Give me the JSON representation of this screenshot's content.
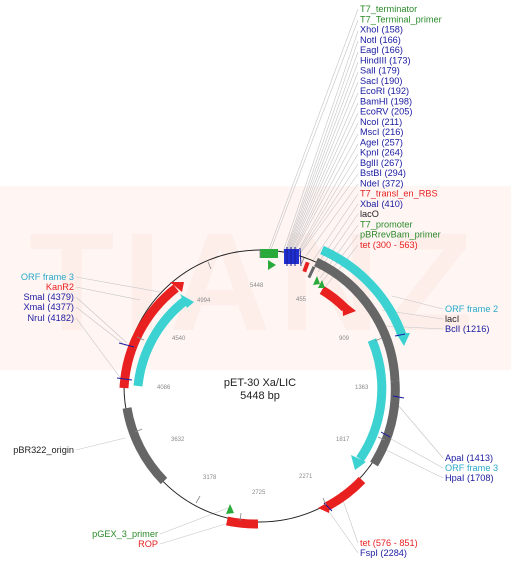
{
  "plasmid": {
    "name": "pET-30 Xa/LIC",
    "size_label": "5448 bp",
    "length": 5448
  },
  "watermark": "TIANZ",
  "colors": {
    "backbone": "#222222",
    "enzyme": "#1a1aa0",
    "feature": "#2a8a2a",
    "red": "#e82020",
    "cyan": "#3cd2d2",
    "grey": "#6a6a6a",
    "green": "#2aaa3a",
    "blue": "#2030d0",
    "leader": "#bdbdbd",
    "watermark": "#fff3f1"
  },
  "ticks": [
    "5448",
    "455",
    "909",
    "1363",
    "1817",
    "2271",
    "2725",
    "3178",
    "3632",
    "4086",
    "4540",
    "4994"
  ],
  "labels_top": [
    {
      "text": "T7_terminator",
      "color": "feature"
    },
    {
      "text": "T7_Terminal_primer",
      "color": "feature"
    },
    {
      "text": "XhoI (158)",
      "color": "enzyme"
    },
    {
      "text": "NotI (166)",
      "color": "enzyme"
    },
    {
      "text": "EagI (166)",
      "color": "enzyme"
    },
    {
      "text": "HindIII (173)",
      "color": "enzyme"
    },
    {
      "text": "SalI (179)",
      "color": "enzyme"
    },
    {
      "text": "SacI (190)",
      "color": "enzyme"
    },
    {
      "text": "EcoRI (192)",
      "color": "enzyme"
    },
    {
      "text": "BamHI (198)",
      "color": "enzyme"
    },
    {
      "text": "EcoRV (205)",
      "color": "enzyme"
    },
    {
      "text": "NcoI (211)",
      "color": "enzyme"
    },
    {
      "text": "MscI (216)",
      "color": "enzyme"
    },
    {
      "text": "AgeI (257)",
      "color": "enzyme"
    },
    {
      "text": "KpnI (264)",
      "color": "enzyme"
    },
    {
      "text": "BglII (267)",
      "color": "enzyme"
    },
    {
      "text": "BstBI (294)",
      "color": "enzyme"
    },
    {
      "text": "NdeI (372)",
      "color": "enzyme"
    },
    {
      "text": "T7_transl_en_RBS",
      "color": "red"
    },
    {
      "text": "XbaI (410)",
      "color": "enzyme"
    },
    {
      "text": "lacO",
      "color": "backbone"
    },
    {
      "text": "T7_promoter",
      "color": "feature"
    },
    {
      "text": "pBRrevBam_primer",
      "color": "feature"
    },
    {
      "text": "tet (300 - 563)",
      "color": "red"
    }
  ],
  "labels_right": [
    {
      "text": "ORF frame 2",
      "color": "cyan2"
    },
    {
      "text": "lacI",
      "color": "backbone"
    },
    {
      "text": "BclI (1216)",
      "color": "enzyme"
    },
    {
      "text": "ApaI (1413)",
      "color": "enzyme"
    },
    {
      "text": "ORF frame 3",
      "color": "cyan2"
    },
    {
      "text": "HpaI (1708)",
      "color": "enzyme"
    },
    {
      "text": "tet (576 - 851)",
      "color": "red"
    },
    {
      "text": "FspI (2284)",
      "color": "enzyme"
    }
  ],
  "labels_left": [
    {
      "text": "ORF frame 3",
      "color": "cyan2"
    },
    {
      "text": "KanR2",
      "color": "red"
    },
    {
      "text": "SmaI (4379)",
      "color": "enzyme"
    },
    {
      "text": "XmaI (4377)",
      "color": "enzyme"
    },
    {
      "text": "NruI (4182)",
      "color": "enzyme"
    },
    {
      "text": "pBR322_origin",
      "color": "backbone"
    },
    {
      "text": "pGEX_3_primer",
      "color": "feature"
    },
    {
      "text": "ROP",
      "color": "red"
    }
  ]
}
